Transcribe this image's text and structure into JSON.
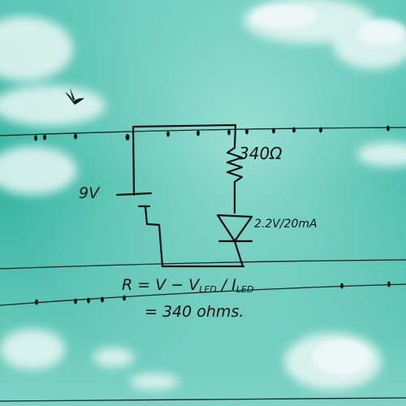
{
  "photo": {
    "sky_colors": [
      "#6fcfc0",
      "#2fb29e",
      "#8fdccf"
    ],
    "cloud_color": "#e8f7f4",
    "wire_color": "#1a2a28",
    "ink_color": "#101010"
  },
  "circuit": {
    "source_label": "9V",
    "resistor_label": "340Ω",
    "led_label": "2.2V/20mA"
  },
  "formula": {
    "line1_r": "R = V − V",
    "line1_sub1": "LED",
    "line1_mid": " / I",
    "line1_sub2": "LED",
    "line2": "= 340 ohms."
  }
}
